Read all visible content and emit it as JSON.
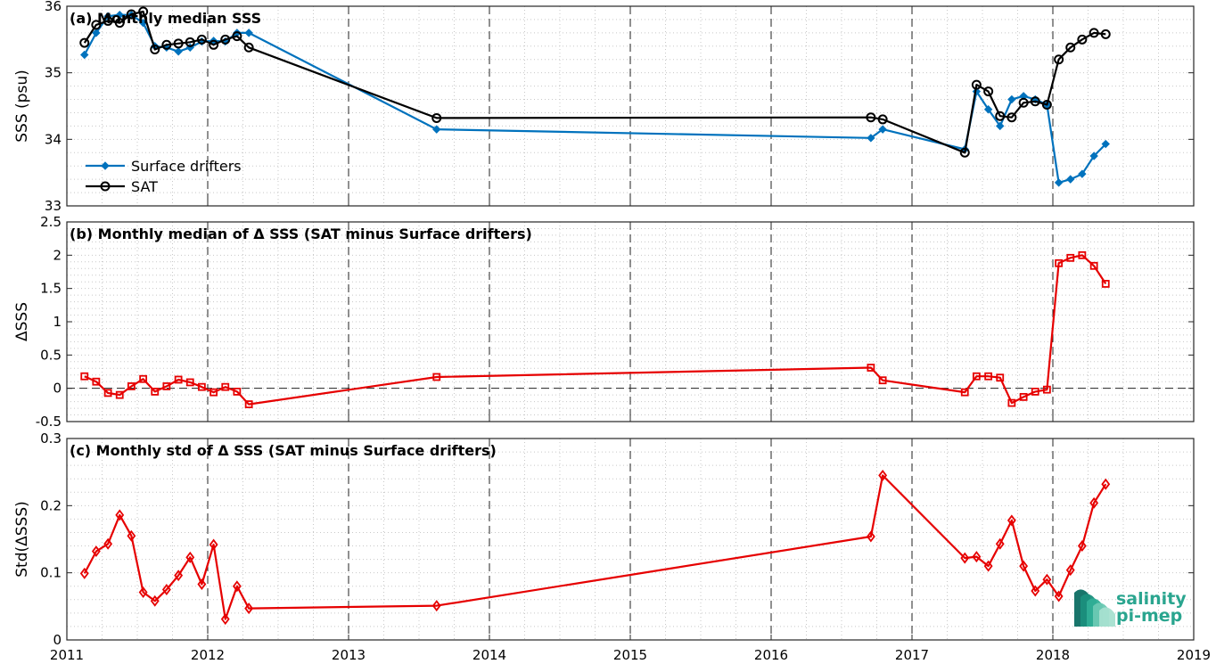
{
  "chart_data": [
    {
      "type": "line",
      "title": "(a) Monthly median SSS",
      "ylabel": "SSS (psu)",
      "xlim": [
        2011,
        2019
      ],
      "ylim": [
        33,
        36
      ],
      "y_ticks": [
        "33",
        "34",
        "35",
        "36"
      ],
      "grid": "dotted minor grid, dashed vertical lines at each year",
      "legend_placement": "lower-left",
      "series": [
        {
          "name": "Surface drifters",
          "color": "#0072BD",
          "marker": "filled-diamond",
          "x": [
            2011.125,
            2011.208,
            2011.292,
            2011.375,
            2011.458,
            2011.542,
            2011.625,
            2011.708,
            2011.792,
            2011.875,
            2011.958,
            2012.042,
            2012.125,
            2012.208,
            2012.292,
            2013.625,
            2016.708,
            2016.792,
            2017.375,
            2017.458,
            2017.542,
            2017.625,
            2017.708,
            2017.792,
            2017.875,
            2017.958,
            2018.042,
            2018.125,
            2018.208,
            2018.292,
            2018.375
          ],
          "values": [
            35.27,
            35.6,
            35.85,
            35.87,
            35.87,
            35.75,
            35.4,
            35.38,
            35.32,
            35.38,
            35.47,
            35.48,
            35.47,
            35.6,
            35.6,
            34.15,
            34.02,
            34.15,
            33.85,
            34.72,
            34.45,
            34.2,
            34.6,
            34.65,
            34.6,
            34.52,
            33.35,
            33.4,
            33.48,
            33.75,
            33.93
          ]
        },
        {
          "name": "SAT",
          "color": "#000000",
          "marker": "open-circle",
          "x": [
            2011.125,
            2011.208,
            2011.292,
            2011.375,
            2011.458,
            2011.542,
            2011.625,
            2011.708,
            2011.792,
            2011.875,
            2011.958,
            2012.042,
            2012.125,
            2012.208,
            2012.292,
            2013.625,
            2016.708,
            2016.792,
            2017.375,
            2017.458,
            2017.542,
            2017.625,
            2017.708,
            2017.792,
            2017.875,
            2017.958,
            2018.042,
            2018.125,
            2018.208,
            2018.292,
            2018.375
          ],
          "values": [
            35.45,
            35.72,
            35.78,
            35.75,
            35.88,
            35.92,
            35.35,
            35.42,
            35.44,
            35.46,
            35.5,
            35.42,
            35.5,
            35.55,
            35.38,
            34.32,
            34.33,
            34.3,
            33.8,
            34.82,
            34.72,
            34.35,
            34.33,
            34.55,
            34.57,
            34.52,
            35.2,
            35.38,
            35.5,
            35.6,
            35.58
          ]
        }
      ]
    },
    {
      "type": "line",
      "title": "(b) Monthly median of Δ SSS (SAT minus Surface drifters)",
      "ylabel": "ΔSSS",
      "xlim": [
        2011,
        2019
      ],
      "ylim": [
        -0.5,
        2.5
      ],
      "y_ticks": [
        "-0.5",
        "0",
        "0.5",
        "1",
        "1.5",
        "2",
        "2.5"
      ],
      "zero_line": "dashed",
      "series": [
        {
          "color": "#E60000",
          "marker": "open-square",
          "x": [
            2011.125,
            2011.208,
            2011.292,
            2011.375,
            2011.458,
            2011.542,
            2011.625,
            2011.708,
            2011.792,
            2011.875,
            2011.958,
            2012.042,
            2012.125,
            2012.208,
            2012.292,
            2013.625,
            2016.708,
            2016.792,
            2017.375,
            2017.458,
            2017.542,
            2017.625,
            2017.708,
            2017.792,
            2017.875,
            2017.958,
            2018.042,
            2018.125,
            2018.208,
            2018.292,
            2018.375
          ],
          "values": [
            0.18,
            0.1,
            -0.07,
            -0.1,
            0.03,
            0.14,
            -0.05,
            0.03,
            0.13,
            0.09,
            0.02,
            -0.06,
            0.02,
            -0.05,
            -0.24,
            0.17,
            0.31,
            0.12,
            -0.06,
            0.18,
            0.18,
            0.16,
            -0.22,
            -0.13,
            -0.05,
            -0.02,
            1.88,
            1.96,
            2.0,
            1.84,
            1.57
          ]
        }
      ]
    },
    {
      "type": "line",
      "title": "(c) Monthly std of Δ SSS (SAT minus Surface drifters)",
      "ylabel": "Std(ΔSSS)",
      "xlabel": "",
      "xlim": [
        2011,
        2019
      ],
      "ylim": [
        0,
        0.3
      ],
      "x_ticks": [
        "2011",
        "2012",
        "2013",
        "2014",
        "2015",
        "2016",
        "2017",
        "2018",
        "2019"
      ],
      "y_ticks": [
        "0",
        "0.1",
        "0.2",
        "0.3"
      ],
      "series": [
        {
          "color": "#E60000",
          "marker": "open-diamond",
          "x": [
            2011.125,
            2011.208,
            2011.292,
            2011.375,
            2011.458,
            2011.542,
            2011.625,
            2011.708,
            2011.792,
            2011.875,
            2011.958,
            2012.042,
            2012.125,
            2012.208,
            2012.292,
            2013.625,
            2016.708,
            2016.792,
            2017.375,
            2017.458,
            2017.542,
            2017.625,
            2017.708,
            2017.792,
            2017.875,
            2017.958,
            2018.042,
            2018.125,
            2018.208,
            2018.292,
            2018.375
          ],
          "values": [
            0.099,
            0.132,
            0.143,
            0.186,
            0.155,
            0.071,
            0.058,
            0.075,
            0.096,
            0.123,
            0.083,
            0.142,
            0.031,
            0.08,
            0.047,
            0.051,
            0.154,
            0.245,
            0.122,
            0.124,
            0.11,
            0.143,
            0.178,
            0.11,
            0.073,
            0.09,
            0.065,
            0.104,
            0.14,
            0.204,
            0.232
          ]
        }
      ]
    }
  ],
  "logo": {
    "line1": "salinity",
    "line2": "pi-mep",
    "color": "#2aa58f"
  }
}
